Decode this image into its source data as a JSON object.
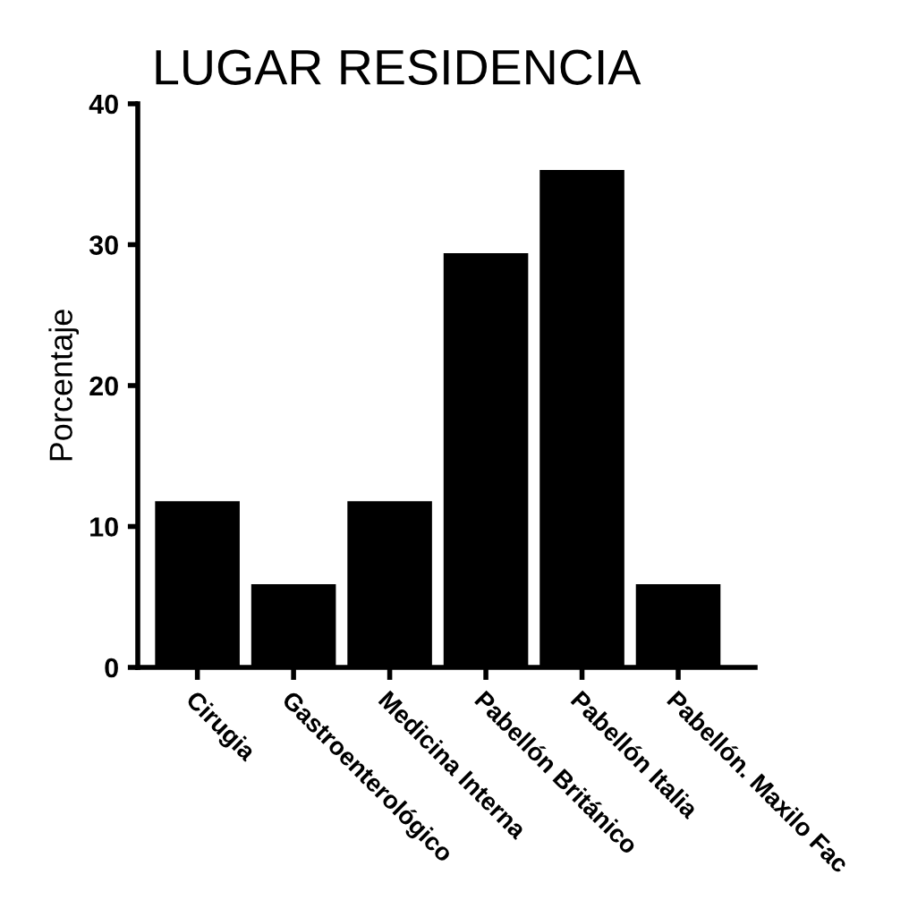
{
  "chart_data": {
    "type": "bar",
    "title": "LUGAR RESIDENCIA",
    "ylabel": "Porcentaje",
    "categories": [
      "Cirugia",
      "Gastroenterológico",
      "Medicina Interna",
      "Pabellón Británico",
      "Pabellón Italia",
      "Pabellón. Maxilo Fac"
    ],
    "values": [
      11.8,
      5.9,
      11.8,
      29.4,
      35.3,
      5.9
    ],
    "color": "#000000",
    "ylim": [
      0,
      40
    ],
    "yticks": [
      0,
      10,
      20,
      30,
      40
    ],
    "grid": false,
    "legend": false
  }
}
